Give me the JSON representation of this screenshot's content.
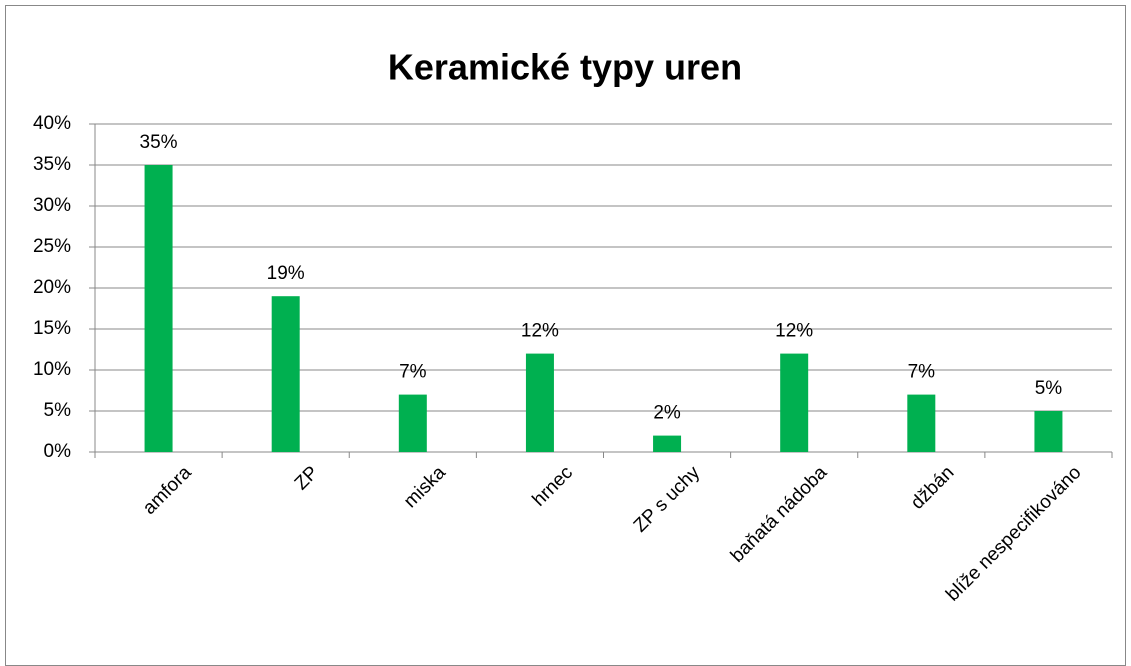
{
  "chart_data": {
    "type": "bar",
    "title": "Keramické typy uren",
    "categories": [
      "amfora",
      "ZP",
      "miska",
      "hrnec",
      "ZP s uchy",
      "baňatá nádoba",
      "džbán",
      "blíže nespecifikováno"
    ],
    "values": [
      35,
      19,
      7,
      12,
      2,
      12,
      7,
      5
    ],
    "value_labels": [
      "35%",
      "19%",
      "7%",
      "12%",
      "2%",
      "12%",
      "7%",
      "5%"
    ],
    "color": "#00b050",
    "ylim": [
      0,
      40
    ],
    "yticks": [
      {
        "value": 0,
        "label": "0%"
      },
      {
        "value": 5,
        "label": "5%"
      },
      {
        "value": 10,
        "label": "10%"
      },
      {
        "value": 15,
        "label": "15%"
      },
      {
        "value": 20,
        "label": "20%"
      },
      {
        "value": 25,
        "label": "25%"
      },
      {
        "value": 30,
        "label": "30%"
      },
      {
        "value": 35,
        "label": "35%"
      },
      {
        "value": 40,
        "label": "40%"
      }
    ],
    "grid": true
  }
}
